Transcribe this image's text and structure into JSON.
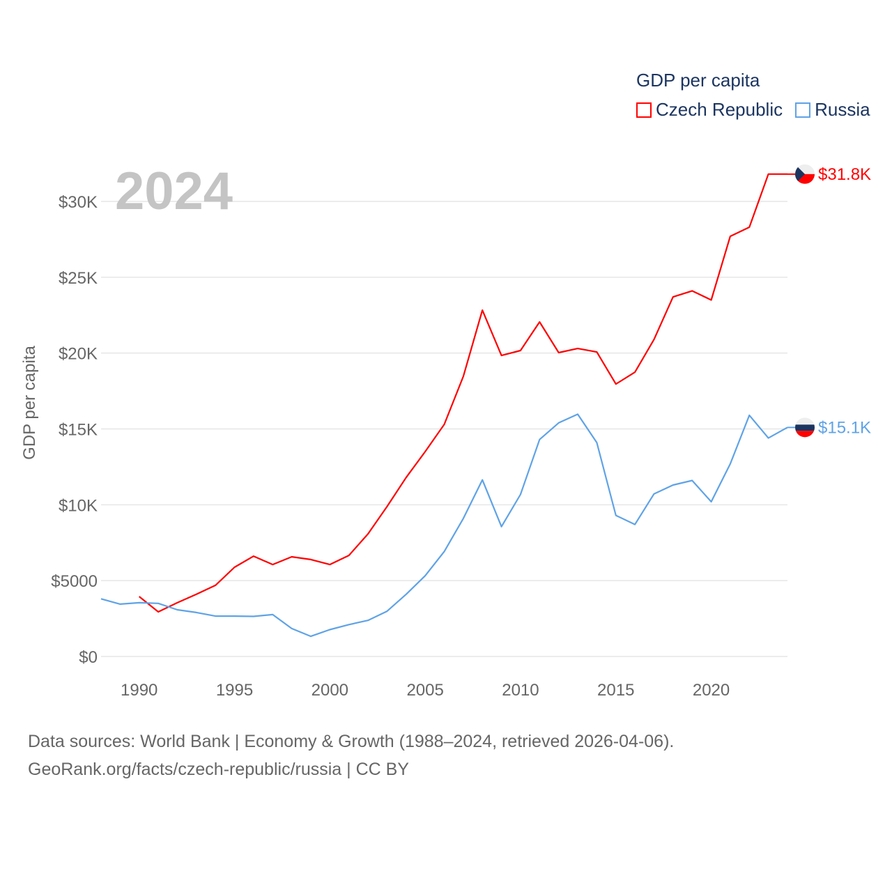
{
  "chart_data": {
    "type": "line",
    "title": "GDP per capita",
    "year_label": "2024",
    "xlabel": "",
    "ylabel": "GDP per capita",
    "xlim": [
      1988,
      2024
    ],
    "ylim": [
      0,
      30000
    ],
    "x_ticks": [
      1990,
      1995,
      2000,
      2005,
      2010,
      2015,
      2020
    ],
    "y_ticks": [
      {
        "value": 0,
        "label": "$0"
      },
      {
        "value": 5000,
        "label": "$5000"
      },
      {
        "value": 10000,
        "label": "$10K"
      },
      {
        "value": 15000,
        "label": "$15K"
      },
      {
        "value": 20000,
        "label": "$20K"
      },
      {
        "value": 25000,
        "label": "$25K"
      },
      {
        "value": 30000,
        "label": "$30K"
      }
    ],
    "grid": true,
    "legend_placement": "top-right",
    "series": [
      {
        "name": "Czech Republic",
        "color": "#ff0000",
        "end_label": "$31.8K",
        "x": [
          1990,
          1991,
          1992,
          1993,
          1994,
          1995,
          1996,
          1997,
          1998,
          1999,
          2000,
          2001,
          2002,
          2003,
          2004,
          2005,
          2006,
          2007,
          2008,
          2009,
          2010,
          2011,
          2012,
          2013,
          2014,
          2015,
          2016,
          2017,
          2018,
          2019,
          2020,
          2021,
          2022,
          2023,
          2024
        ],
        "values": [
          3950,
          2940,
          3540,
          4100,
          4690,
          5880,
          6610,
          6060,
          6570,
          6390,
          6060,
          6660,
          8080,
          9880,
          11800,
          13500,
          15300,
          18470,
          22830,
          19840,
          20170,
          22050,
          20030,
          20300,
          20070,
          17960,
          18740,
          20900,
          23700,
          24100,
          23500,
          27700,
          28300,
          31800,
          31800
        ]
      },
      {
        "name": "Russia",
        "color": "#5fa3e6",
        "end_label": "$15.1K",
        "x": [
          1988,
          1989,
          1990,
          1991,
          1992,
          1993,
          1994,
          1995,
          1996,
          1997,
          1998,
          1999,
          2000,
          2001,
          2002,
          2003,
          2004,
          2005,
          2006,
          2007,
          2008,
          2009,
          2010,
          2011,
          2012,
          2013,
          2014,
          2015,
          2016,
          2017,
          2018,
          2019,
          2020,
          2021,
          2022,
          2023,
          2024
        ],
        "values": [
          3800,
          3450,
          3540,
          3500,
          3080,
          2900,
          2660,
          2660,
          2640,
          2760,
          1840,
          1330,
          1770,
          2100,
          2380,
          2980,
          4100,
          5320,
          6920,
          9100,
          11640,
          8560,
          10680,
          14300,
          15400,
          15970,
          14100,
          9300,
          8700,
          10720,
          11300,
          11600,
          10200,
          12700,
          15900,
          14400,
          15100
        ]
      }
    ]
  },
  "footer": {
    "line1": "Data sources: World Bank | Economy & Growth (1988–2024, retrieved 2026-04-06).",
    "line2": "GeoRank.org/facts/czech-republic/russia | CC BY"
  }
}
